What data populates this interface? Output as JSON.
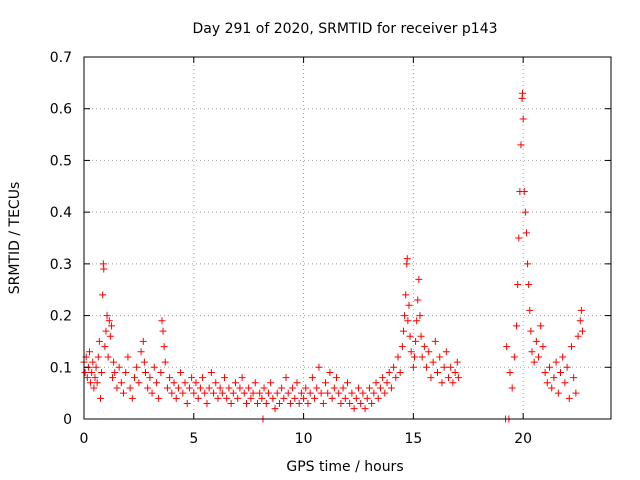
{
  "chart_data": {
    "type": "scatter",
    "title": "Day 291 of 2020, SRMTID for receiver p143",
    "xlabel": "GPS time / hours",
    "ylabel": "SRMTID / TECUs",
    "xlim": [
      0,
      24
    ],
    "ylim": [
      0,
      0.7
    ],
    "xticks": [
      0,
      5,
      10,
      15,
      20
    ],
    "yticks": [
      0,
      0.1,
      0.2,
      0.3,
      0.4,
      0.5,
      0.6,
      0.7
    ],
    "xtick_labels": [
      "0",
      "5",
      "10",
      "15",
      "20"
    ],
    "ytick_labels": [
      "0",
      "0.1",
      "0.2",
      "0.3",
      "0.4",
      "0.5",
      "0.6",
      "0.7"
    ],
    "grid": true,
    "marker": "+",
    "color": "#ff0000",
    "series": [
      {
        "name": "SRMTID",
        "points": [
          [
            0.0,
            0.11
          ],
          [
            0.05,
            0.09
          ],
          [
            0.1,
            0.12
          ],
          [
            0.15,
            0.08
          ],
          [
            0.2,
            0.1
          ],
          [
            0.25,
            0.13
          ],
          [
            0.3,
            0.07
          ],
          [
            0.35,
            0.09
          ],
          [
            0.4,
            0.11
          ],
          [
            0.45,
            0.06
          ],
          [
            0.5,
            0.08
          ],
          [
            0.55,
            0.1
          ],
          [
            0.6,
            0.07
          ],
          [
            0.65,
            0.12
          ],
          [
            0.7,
            0.15
          ],
          [
            0.75,
            0.04
          ],
          [
            0.8,
            0.09
          ],
          [
            0.85,
            0.24
          ],
          [
            0.88,
            0.3
          ],
          [
            0.9,
            0.29
          ],
          [
            0.95,
            0.14
          ],
          [
            1.0,
            0.17
          ],
          [
            1.05,
            0.2
          ],
          [
            1.1,
            0.12
          ],
          [
            1.15,
            0.19
          ],
          [
            1.2,
            0.16
          ],
          [
            1.25,
            0.18
          ],
          [
            1.3,
            0.08
          ],
          [
            1.35,
            0.11
          ],
          [
            1.4,
            0.09
          ],
          [
            1.5,
            0.06
          ],
          [
            1.6,
            0.1
          ],
          [
            1.7,
            0.07
          ],
          [
            1.8,
            0.05
          ],
          [
            1.9,
            0.09
          ],
          [
            2.0,
            0.12
          ],
          [
            2.1,
            0.06
          ],
          [
            2.2,
            0.04
          ],
          [
            2.3,
            0.08
          ],
          [
            2.4,
            0.1
          ],
          [
            2.5,
            0.07
          ],
          [
            2.6,
            0.13
          ],
          [
            2.7,
            0.15
          ],
          [
            2.75,
            0.11
          ],
          [
            2.8,
            0.09
          ],
          [
            2.9,
            0.06
          ],
          [
            3.0,
            0.08
          ],
          [
            3.1,
            0.05
          ],
          [
            3.2,
            0.1
          ],
          [
            3.3,
            0.07
          ],
          [
            3.4,
            0.04
          ],
          [
            3.5,
            0.09
          ],
          [
            3.55,
            0.19
          ],
          [
            3.6,
            0.17
          ],
          [
            3.65,
            0.14
          ],
          [
            3.7,
            0.11
          ],
          [
            3.8,
            0.06
          ],
          [
            3.9,
            0.08
          ],
          [
            4.0,
            0.05
          ],
          [
            4.1,
            0.07
          ],
          [
            4.2,
            0.04
          ],
          [
            4.3,
            0.06
          ],
          [
            4.4,
            0.09
          ],
          [
            4.5,
            0.05
          ],
          [
            4.6,
            0.07
          ],
          [
            4.7,
            0.03
          ],
          [
            4.8,
            0.06
          ],
          [
            4.9,
            0.08
          ],
          [
            5.0,
            0.05
          ],
          [
            5.1,
            0.07
          ],
          [
            5.2,
            0.04
          ],
          [
            5.3,
            0.06
          ],
          [
            5.4,
            0.08
          ],
          [
            5.5,
            0.05
          ],
          [
            5.6,
            0.03
          ],
          [
            5.7,
            0.06
          ],
          [
            5.8,
            0.09
          ],
          [
            5.9,
            0.05
          ],
          [
            6.0,
            0.07
          ],
          [
            6.1,
            0.04
          ],
          [
            6.2,
            0.06
          ],
          [
            6.3,
            0.05
          ],
          [
            6.4,
            0.08
          ],
          [
            6.5,
            0.04
          ],
          [
            6.6,
            0.06
          ],
          [
            6.7,
            0.03
          ],
          [
            6.8,
            0.05
          ],
          [
            6.9,
            0.07
          ],
          [
            7.0,
            0.04
          ],
          [
            7.1,
            0.06
          ],
          [
            7.2,
            0.08
          ],
          [
            7.3,
            0.05
          ],
          [
            7.4,
            0.03
          ],
          [
            7.5,
            0.06
          ],
          [
            7.6,
            0.04
          ],
          [
            7.7,
            0.05
          ],
          [
            7.8,
            0.07
          ],
          [
            7.9,
            0.03
          ],
          [
            8.0,
            0.05
          ],
          [
            8.1,
            0.04
          ],
          [
            8.15,
            0.0
          ],
          [
            8.2,
            0.06
          ],
          [
            8.3,
            0.03
          ],
          [
            8.4,
            0.05
          ],
          [
            8.5,
            0.07
          ],
          [
            8.6,
            0.04
          ],
          [
            8.7,
            0.02
          ],
          [
            8.8,
            0.05
          ],
          [
            8.9,
            0.03
          ],
          [
            9.0,
            0.06
          ],
          [
            9.1,
            0.04
          ],
          [
            9.2,
            0.08
          ],
          [
            9.3,
            0.05
          ],
          [
            9.4,
            0.03
          ],
          [
            9.5,
            0.06
          ],
          [
            9.6,
            0.04
          ],
          [
            9.7,
            0.07
          ],
          [
            9.8,
            0.03
          ],
          [
            9.9,
            0.05
          ],
          [
            10.0,
            0.04
          ],
          [
            10.1,
            0.06
          ],
          [
            10.2,
            0.03
          ],
          [
            10.3,
            0.05
          ],
          [
            10.4,
            0.08
          ],
          [
            10.5,
            0.04
          ],
          [
            10.6,
            0.06
          ],
          [
            10.7,
            0.1
          ],
          [
            10.8,
            0.05
          ],
          [
            10.9,
            0.03
          ],
          [
            11.0,
            0.07
          ],
          [
            11.1,
            0.05
          ],
          [
            11.2,
            0.09
          ],
          [
            11.3,
            0.04
          ],
          [
            11.4,
            0.06
          ],
          [
            11.5,
            0.08
          ],
          [
            11.6,
            0.05
          ],
          [
            11.7,
            0.03
          ],
          [
            11.8,
            0.06
          ],
          [
            11.9,
            0.04
          ],
          [
            12.0,
            0.07
          ],
          [
            12.1,
            0.03
          ],
          [
            12.2,
            0.05
          ],
          [
            12.3,
            0.02
          ],
          [
            12.4,
            0.04
          ],
          [
            12.5,
            0.06
          ],
          [
            12.6,
            0.03
          ],
          [
            12.7,
            0.05
          ],
          [
            12.8,
            0.02
          ],
          [
            12.9,
            0.04
          ],
          [
            13.0,
            0.06
          ],
          [
            13.1,
            0.03
          ],
          [
            13.2,
            0.05
          ],
          [
            13.3,
            0.07
          ],
          [
            13.4,
            0.04
          ],
          [
            13.5,
            0.06
          ],
          [
            13.6,
            0.08
          ],
          [
            13.7,
            0.05
          ],
          [
            13.8,
            0.07
          ],
          [
            13.9,
            0.09
          ],
          [
            14.0,
            0.06
          ],
          [
            14.1,
            0.1
          ],
          [
            14.2,
            0.08
          ],
          [
            14.3,
            0.12
          ],
          [
            14.4,
            0.09
          ],
          [
            14.5,
            0.14
          ],
          [
            14.55,
            0.17
          ],
          [
            14.6,
            0.2
          ],
          [
            14.65,
            0.24
          ],
          [
            14.7,
            0.3
          ],
          [
            14.72,
            0.31
          ],
          [
            14.75,
            0.19
          ],
          [
            14.8,
            0.22
          ],
          [
            14.85,
            0.16
          ],
          [
            14.9,
            0.13
          ],
          [
            15.0,
            0.1
          ],
          [
            15.05,
            0.12
          ],
          [
            15.1,
            0.15
          ],
          [
            15.15,
            0.19
          ],
          [
            15.2,
            0.23
          ],
          [
            15.25,
            0.27
          ],
          [
            15.3,
            0.2
          ],
          [
            15.35,
            0.16
          ],
          [
            15.4,
            0.12
          ],
          [
            15.5,
            0.14
          ],
          [
            15.6,
            0.1
          ],
          [
            15.7,
            0.13
          ],
          [
            15.8,
            0.08
          ],
          [
            15.9,
            0.11
          ],
          [
            16.0,
            0.15
          ],
          [
            16.1,
            0.09
          ],
          [
            16.2,
            0.12
          ],
          [
            16.3,
            0.07
          ],
          [
            16.4,
            0.1
          ],
          [
            16.5,
            0.13
          ],
          [
            16.6,
            0.08
          ],
          [
            16.7,
            0.1
          ],
          [
            16.8,
            0.07
          ],
          [
            16.9,
            0.09
          ],
          [
            17.0,
            0.11
          ],
          [
            17.05,
            0.08
          ],
          [
            19.2,
            0.0
          ],
          [
            19.35,
            0.0
          ],
          [
            19.25,
            0.14
          ],
          [
            19.4,
            0.09
          ],
          [
            19.5,
            0.06
          ],
          [
            19.6,
            0.12
          ],
          [
            19.7,
            0.18
          ],
          [
            19.75,
            0.26
          ],
          [
            19.8,
            0.35
          ],
          [
            19.85,
            0.44
          ],
          [
            19.9,
            0.53
          ],
          [
            19.95,
            0.62
          ],
          [
            19.97,
            0.63
          ],
          [
            20.0,
            0.58
          ],
          [
            20.05,
            0.44
          ],
          [
            20.1,
            0.4
          ],
          [
            20.15,
            0.36
          ],
          [
            20.2,
            0.3
          ],
          [
            20.25,
            0.26
          ],
          [
            20.3,
            0.21
          ],
          [
            20.35,
            0.17
          ],
          [
            20.4,
            0.13
          ],
          [
            20.5,
            0.11
          ],
          [
            20.6,
            0.15
          ],
          [
            20.7,
            0.12
          ],
          [
            20.8,
            0.18
          ],
          [
            20.9,
            0.14
          ],
          [
            21.0,
            0.09
          ],
          [
            21.1,
            0.07
          ],
          [
            21.2,
            0.1
          ],
          [
            21.3,
            0.06
          ],
          [
            21.4,
            0.08
          ],
          [
            21.5,
            0.11
          ],
          [
            21.6,
            0.05
          ],
          [
            21.7,
            0.09
          ],
          [
            21.8,
            0.12
          ],
          [
            21.9,
            0.07
          ],
          [
            22.0,
            0.1
          ],
          [
            22.1,
            0.04
          ],
          [
            22.2,
            0.14
          ],
          [
            22.3,
            0.08
          ],
          [
            22.4,
            0.05
          ],
          [
            22.5,
            0.16
          ],
          [
            22.6,
            0.19
          ],
          [
            22.65,
            0.21
          ],
          [
            22.7,
            0.17
          ]
        ]
      }
    ]
  }
}
